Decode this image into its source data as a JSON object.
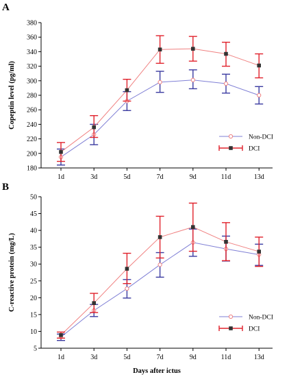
{
  "chart_data": [
    {
      "panel_label": "A",
      "type": "line",
      "categories": [
        "1d",
        "3d",
        "5d",
        "7d",
        "9d",
        "11d",
        "13d"
      ],
      "ylabel": "Copeptin level  (pg/ml)",
      "xlabel": "",
      "ylim": [
        180,
        380
      ],
      "yticks": [
        180,
        200,
        220,
        240,
        260,
        280,
        300,
        320,
        340,
        360,
        380
      ],
      "legend_position": "lower-right",
      "series": [
        {
          "name": "Non-DCI",
          "marker": "open-circle",
          "color": "#7f7fd5",
          "errcolor": "#3a3aa0",
          "values": [
            195,
            226,
            272,
            298,
            301,
            296,
            280
          ],
          "err_low": [
            184,
            212,
            259,
            284,
            289,
            283,
            268
          ],
          "err_high": [
            206,
            240,
            285,
            313,
            315,
            309,
            292
          ]
        },
        {
          "name": "DCI",
          "marker": "filled-square",
          "color": "#f08080",
          "errcolor": "#e0202a",
          "values": [
            202,
            236,
            287,
            343,
            344,
            337,
            321
          ],
          "err_low": [
            189,
            222,
            272,
            324,
            327,
            320,
            304
          ],
          "err_high": [
            215,
            252,
            302,
            362,
            361,
            353,
            337
          ]
        }
      ]
    },
    {
      "panel_label": "B",
      "type": "line",
      "categories": [
        "1d",
        "3d",
        "5d",
        "7d",
        "9d",
        "11d",
        "13d"
      ],
      "ylabel": "C-reactive protein (mg/L)",
      "xlabel": "Days after ictus",
      "ylim": [
        5,
        50
      ],
      "yticks": [
        5,
        10,
        15,
        20,
        25,
        30,
        35,
        40,
        45,
        50
      ],
      "legend_position": "lower-right",
      "series": [
        {
          "name": "Non-DCI",
          "marker": "open-circle",
          "color": "#7f7fd5",
          "errcolor": "#3a3aa0",
          "values": [
            8.3,
            16.2,
            22.7,
            29.8,
            36.4,
            34.5,
            32.8
          ],
          "err_low": [
            7.3,
            14.4,
            19.9,
            26.1,
            32.3,
            30.9,
            29.6
          ],
          "err_high": [
            9.2,
            18.0,
            25.4,
            33.4,
            40.4,
            38.3,
            35.9
          ]
        },
        {
          "name": "DCI",
          "marker": "filled-square",
          "color": "#f08080",
          "errcolor": "#e0202a",
          "values": [
            8.9,
            18.4,
            28.6,
            38.0,
            41.0,
            36.6,
            33.7
          ],
          "err_low": [
            8.0,
            15.6,
            24.2,
            31.8,
            33.8,
            31.0,
            29.3
          ],
          "err_high": [
            9.8,
            21.3,
            33.2,
            44.2,
            48.1,
            42.3,
            38.0
          ]
        }
      ]
    }
  ]
}
